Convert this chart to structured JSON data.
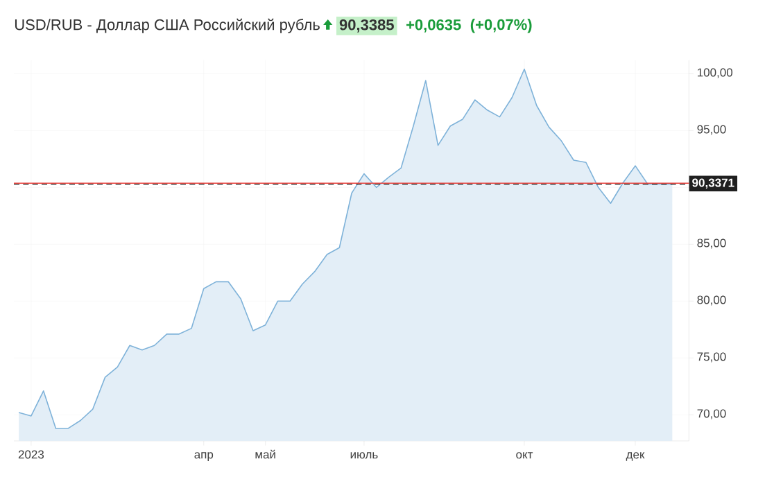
{
  "chart_data": {
    "type": "area",
    "title": "USD/RUB - Доллар США Российский рубль",
    "annotations": [
      "90,3385",
      "+0,0635",
      "(+0,07%)"
    ],
    "categories": [
      null,
      "2023",
      null,
      null,
      null,
      null,
      null,
      null,
      null,
      null,
      null,
      null,
      null,
      null,
      null,
      "апр",
      null,
      null,
      null,
      null,
      "май",
      null,
      null,
      null,
      null,
      null,
      null,
      null,
      "июль",
      null,
      null,
      null,
      null,
      null,
      null,
      null,
      null,
      null,
      null,
      null,
      null,
      "окт",
      null,
      null,
      null,
      null,
      null,
      null,
      null,
      null,
      "дек",
      null,
      null,
      null
    ],
    "series": [
      {
        "color": "#7eb2d9",
        "values": [
          70.2,
          69.9,
          72.1,
          68.8,
          68.8,
          69.5,
          70.5,
          73.3,
          74.2,
          76.1,
          75.7,
          76.1,
          77.1,
          77.1,
          77.6,
          81.1,
          81.7,
          81.7,
          80.2,
          77.4,
          77.9,
          80.0,
          80.0,
          81.5,
          82.6,
          84.1,
          84.7,
          89.5,
          91.2,
          90.0,
          90.9,
          91.7,
          95.4,
          99.4,
          93.7,
          95.4,
          96.0,
          97.7,
          96.8,
          96.2,
          97.9,
          100.4,
          97.2,
          95.3,
          94.1,
          92.4,
          92.2,
          90.0,
          88.6,
          90.4,
          91.9,
          90.3,
          90.3,
          90.3
        ]
      }
    ],
    "ylim": [
      67.7,
      101.2
    ],
    "yticks": [
      {
        "value": 70,
        "label": "70,00"
      },
      {
        "value": 75,
        "label": "75,00"
      },
      {
        "value": 80,
        "label": "80,00"
      },
      {
        "value": 85,
        "label": "85,00"
      },
      {
        "value": 90,
        "label": null
      },
      {
        "value": 95,
        "label": "95,00"
      },
      {
        "value": 100,
        "label": "100,00"
      }
    ],
    "grid": true,
    "ref_lines": [
      {
        "axis": "y",
        "value": 90.3371,
        "label": "90,3371",
        "color": "#333333",
        "line_style": "dashed"
      },
      {
        "axis": "y",
        "value": 90.3371,
        "color": "#e8413c",
        "line_style": "solid"
      }
    ]
  }
}
